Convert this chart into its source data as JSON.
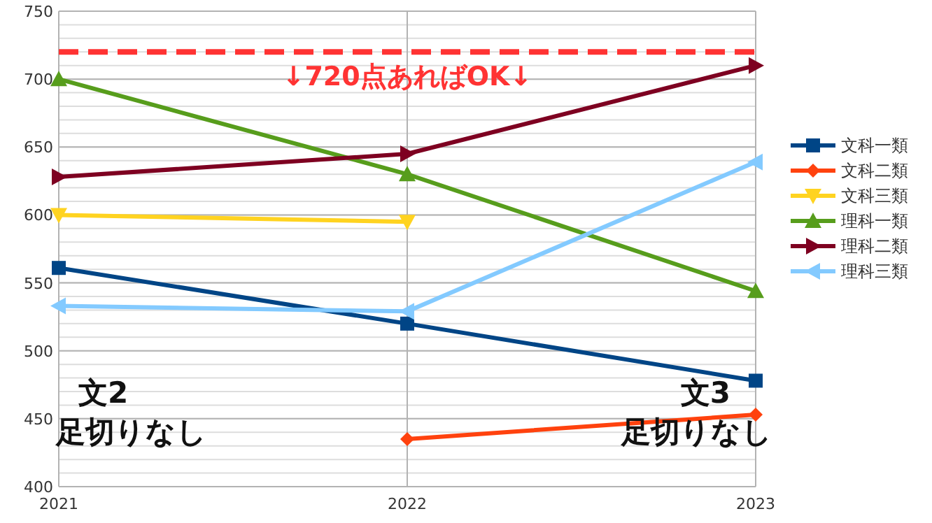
{
  "chart_data": {
    "type": "line",
    "categories": [
      "2021",
      "2022",
      "2023"
    ],
    "series": [
      {
        "name": "文科一類",
        "color": "#004586",
        "marker": "square",
        "values": [
          561,
          520,
          478
        ]
      },
      {
        "name": "文科二類",
        "color": "#ff420e",
        "marker": "diamond",
        "values": [
          null,
          435,
          453
        ]
      },
      {
        "name": "文科三類",
        "color": "#ffd320",
        "marker": "triangle-down",
        "values": [
          600,
          595,
          null
        ]
      },
      {
        "name": "理科一類",
        "color": "#579d1c",
        "marker": "triangle",
        "values": [
          700,
          630,
          544
        ]
      },
      {
        "name": "理科二類",
        "color": "#7e0021",
        "marker": "triangle-right",
        "values": [
          628,
          645,
          710
        ]
      },
      {
        "name": "理科三類",
        "color": "#83caff",
        "marker": "triangle-left",
        "values": [
          533,
          529,
          639
        ]
      }
    ],
    "ylim": [
      400,
      750
    ],
    "yticks": [
      400,
      450,
      500,
      550,
      600,
      650,
      700,
      750
    ],
    "grid": true,
    "legend": "right",
    "ref_lines": [
      {
        "axis": "y",
        "value": 720,
        "label": "↓720点あればOK↓",
        "color": "#ff3333",
        "line_style": "dashed"
      }
    ],
    "annotations": [
      "文2\n足切りなし",
      "文3\n足切りなし"
    ]
  }
}
